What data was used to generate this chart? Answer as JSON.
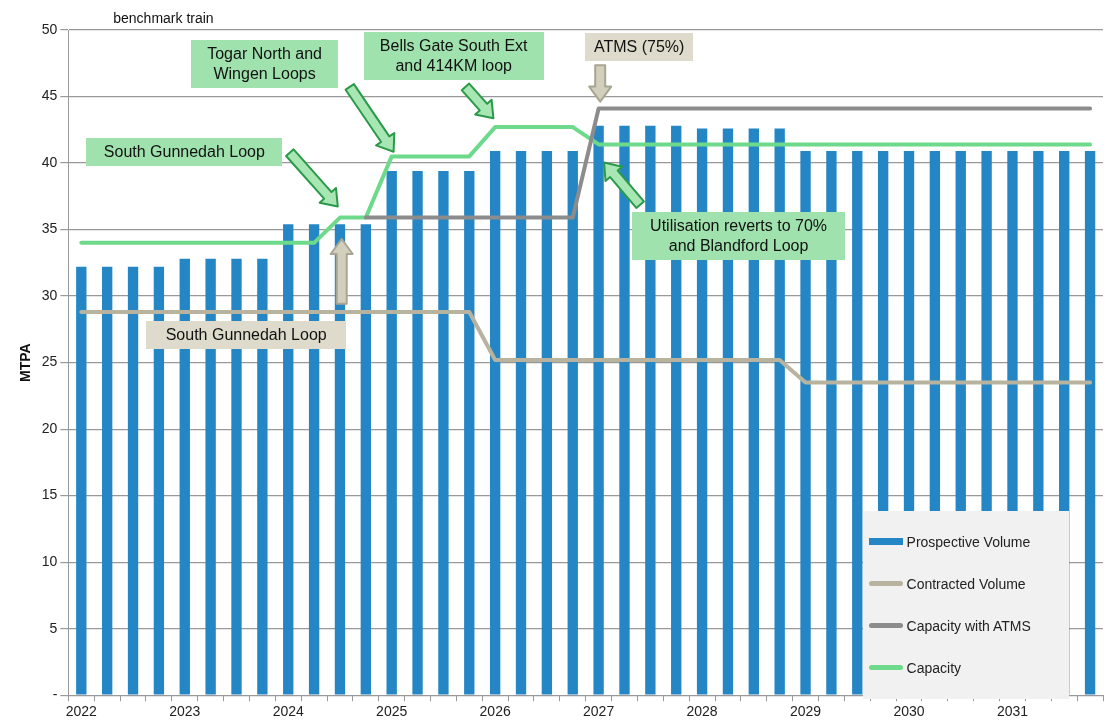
{
  "chart_data": {
    "type": "bar",
    "ylabel": "MTPA",
    "categories": [
      "2022",
      null,
      null,
      null,
      "2023",
      null,
      null,
      null,
      "2024",
      null,
      null,
      null,
      "2025",
      null,
      null,
      null,
      "2026",
      null,
      null,
      null,
      "2027",
      null,
      null,
      null,
      "2028",
      null,
      null,
      null,
      "2029",
      null,
      null,
      null,
      "2030",
      null,
      null,
      null,
      "2031",
      null,
      null,
      null
    ],
    "series": [
      {
        "name": "Prospective Volume",
        "type": "bar",
        "color": "#2486c4",
        "values": [
          32.2,
          32.2,
          32.2,
          32.2,
          32.8,
          32.8,
          32.8,
          32.8,
          35.4,
          35.4,
          35.4,
          35.4,
          39.4,
          39.4,
          39.4,
          39.4,
          40.9,
          40.9,
          40.9,
          40.9,
          42.8,
          42.8,
          42.8,
          42.8,
          42.6,
          42.6,
          42.6,
          42.6,
          40.9,
          40.9,
          40.9,
          40.9,
          40.9,
          40.9,
          40.9,
          40.9,
          40.9,
          40.9,
          40.9,
          40.9
        ]
      },
      {
        "name": "Contracted Volume",
        "type": "line",
        "color": "#b7b39e",
        "values": [
          28.8,
          28.8,
          28.8,
          28.8,
          28.8,
          28.8,
          28.8,
          28.8,
          28.8,
          28.8,
          28.8,
          28.8,
          28.8,
          28.8,
          28.8,
          28.8,
          25.2,
          25.2,
          25.2,
          25.2,
          25.2,
          25.2,
          25.2,
          25.2,
          25.2,
          25.2,
          25.2,
          25.2,
          23.5,
          23.5,
          23.5,
          23.5,
          23.5,
          23.5,
          23.5,
          23.5,
          23.5,
          23.5,
          23.5,
          23.5
        ]
      },
      {
        "name": "Capacity with ATMS",
        "type": "line",
        "color": "#8c8c8c",
        "values": [
          null,
          null,
          null,
          null,
          null,
          null,
          null,
          null,
          null,
          null,
          null,
          35.9,
          35.9,
          35.9,
          35.9,
          35.9,
          35.9,
          35.9,
          35.9,
          35.9,
          44.1,
          44.1,
          44.1,
          44.1,
          44.1,
          44.1,
          44.1,
          44.1,
          44.1,
          44.1,
          44.1,
          44.1,
          44.1,
          44.1,
          44.1,
          44.1,
          44.1,
          44.1,
          44.1,
          44.1
        ]
      },
      {
        "name": "Capacity",
        "type": "line",
        "color": "#6dd98a",
        "values": [
          34.0,
          34.0,
          34.0,
          34.0,
          34.0,
          34.0,
          34.0,
          34.0,
          34.0,
          34.0,
          35.9,
          35.9,
          40.5,
          40.5,
          40.5,
          40.5,
          42.7,
          42.7,
          42.7,
          42.7,
          41.4,
          41.4,
          41.4,
          41.4,
          41.4,
          41.4,
          41.4,
          41.4,
          41.4,
          41.4,
          41.4,
          41.4,
          41.4,
          41.4,
          41.4,
          41.4,
          41.4,
          41.4,
          41.4,
          41.4
        ]
      }
    ],
    "ylim": [
      0,
      50
    ],
    "yticks": [
      {
        "value": 0,
        "label": "-"
      },
      5,
      10,
      15,
      20,
      25,
      30,
      35,
      40,
      45,
      50
    ],
    "grid": "y",
    "legend": "bottom right",
    "annotations": [
      "benchmark train",
      "South Gunnedah Loop",
      "Togar North and Wingen Loops",
      "Bells Gate South Ext and 414KM loop",
      "ATMS (75%)",
      "Utilisation reverts to 70% and Blandford Loop",
      "South Gunnedah Loop"
    ]
  }
}
